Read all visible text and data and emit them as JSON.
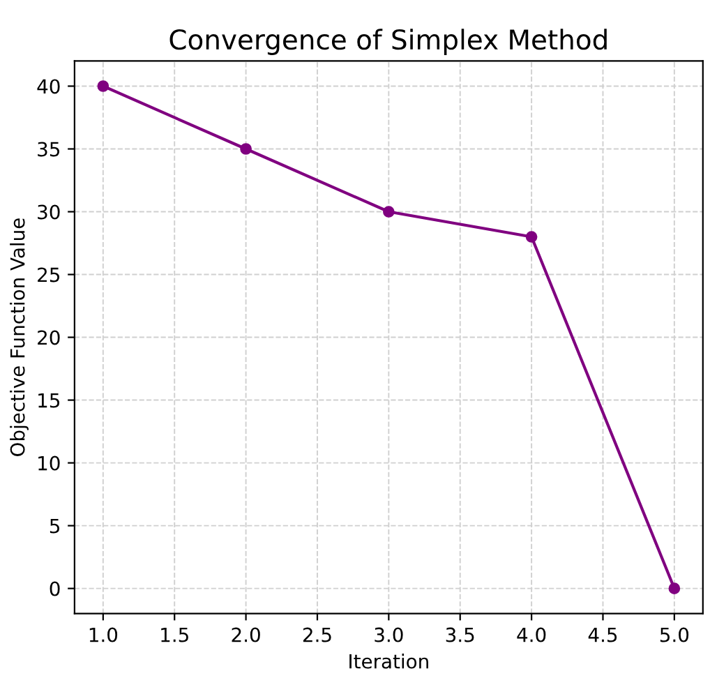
{
  "chart_data": {
    "type": "line",
    "title": "Convergence of Simplex Method",
    "xlabel": "Iteration",
    "ylabel": "Objective Function Value",
    "x": [
      1,
      2,
      3,
      4,
      5
    ],
    "series": [
      {
        "color": "#800080",
        "values": [
          40,
          35,
          30,
          28,
          0
        ]
      }
    ],
    "marker": "circle",
    "line_style": "solid",
    "grid": true,
    "xlim": [
      0.8,
      5.2
    ],
    "ylim": [
      -2,
      42
    ],
    "xticks": [
      {
        "value": 1,
        "label": "1.0"
      },
      {
        "value": 1.5,
        "label": "1.5"
      },
      {
        "value": 2,
        "label": "2.0"
      },
      {
        "value": 2.5,
        "label": "2.5"
      },
      {
        "value": 3,
        "label": "3.0"
      },
      {
        "value": 3.5,
        "label": "3.5"
      },
      {
        "value": 4,
        "label": "4.0"
      },
      {
        "value": 4.5,
        "label": "4.5"
      },
      {
        "value": 5,
        "label": "5.0"
      }
    ],
    "yticks": [
      0,
      5,
      10,
      15,
      20,
      25,
      30,
      35,
      40
    ]
  }
}
